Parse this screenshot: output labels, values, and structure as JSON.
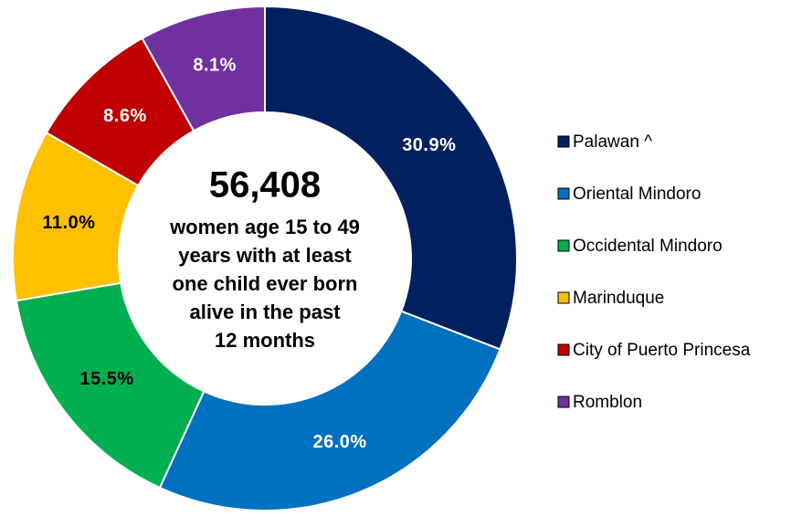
{
  "chart_data": {
    "type": "donut",
    "center_title": "56,408",
    "center_lines": [
      "women age 15 to 49",
      "years with at least",
      "one child ever born",
      "alive in the past",
      "12 months"
    ],
    "categories": [
      "Palawan ^",
      "Oriental Mindoro",
      "Occidental Mindoro",
      "Marinduque",
      "City of Puerto Princesa",
      "Romblon"
    ],
    "values": [
      30.9,
      26.0,
      15.5,
      11.0,
      8.6,
      8.1
    ],
    "value_labels": [
      "30.9%",
      "26.0%",
      "15.5%",
      "11.0%",
      "8.6%",
      "8.1%"
    ],
    "colors": [
      "#002060",
      "#0070c0",
      "#00b050",
      "#ffc000",
      "#c00000",
      "#7030a0"
    ],
    "label_colors": [
      "#ffffff",
      "#ffffff",
      "#000000",
      "#000000",
      "#ffffff",
      "#ffffff"
    ],
    "legend": "right"
  }
}
